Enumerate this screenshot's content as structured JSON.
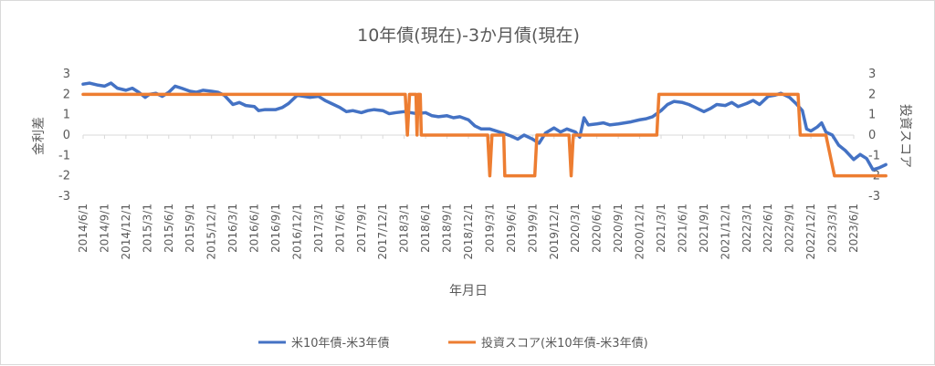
{
  "chart_data": {
    "type": "line",
    "title": "10年債(現在)-3か月債(現在)",
    "xlabel": "年月日",
    "ylabel_left": "金利差",
    "ylabel_right": "投資スコア",
    "y_left_range": [
      -3,
      3
    ],
    "y_right_range": [
      -3,
      3
    ],
    "y_ticks": [
      "3",
      "2",
      "1",
      "0",
      "-1",
      "-2",
      "-3"
    ],
    "x_ticks": [
      "2014/6/1",
      "2014/9/1",
      "2014/12/1",
      "2015/3/1",
      "2015/6/1",
      "2015/9/1",
      "2015/12/1",
      "2016/3/1",
      "2016/6/1",
      "2016/9/1",
      "2016/12/1",
      "2017/3/1",
      "2017/6/1",
      "2017/9/1",
      "2017/12/1",
      "2018/3/1",
      "2018/6/1",
      "2018/9/1",
      "2018/12/1",
      "2019/3/1",
      "2019/6/1",
      "2019/9/1",
      "2019/12/1",
      "2020/3/1",
      "2020/6/1",
      "2020/9/1",
      "2020/12/1",
      "2021/3/1",
      "2021/6/1",
      "2021/9/1",
      "2021/12/1",
      "2022/3/1",
      "2022/6/1",
      "2022/9/1",
      "2022/12/1",
      "2023/3/1",
      "2023/6/1"
    ],
    "legend_position": "bottom",
    "grid": false,
    "series": [
      {
        "name": "米10年債-米3年債",
        "color": "#4472c4",
        "axis": "left",
        "points": [
          [
            0,
            2.5
          ],
          [
            0.3,
            2.55
          ],
          [
            0.7,
            2.45
          ],
          [
            1.0,
            2.4
          ],
          [
            1.3,
            2.55
          ],
          [
            1.6,
            2.3
          ],
          [
            2.0,
            2.2
          ],
          [
            2.3,
            2.3
          ],
          [
            2.6,
            2.1
          ],
          [
            2.9,
            1.85
          ],
          [
            3.1,
            2.0
          ],
          [
            3.4,
            2.05
          ],
          [
            3.7,
            1.9
          ],
          [
            4.0,
            2.1
          ],
          [
            4.3,
            2.4
          ],
          [
            4.6,
            2.3
          ],
          [
            5.0,
            2.15
          ],
          [
            5.3,
            2.1
          ],
          [
            5.6,
            2.2
          ],
          [
            6.0,
            2.15
          ],
          [
            6.3,
            2.1
          ],
          [
            6.6,
            1.95
          ],
          [
            7.0,
            1.5
          ],
          [
            7.3,
            1.6
          ],
          [
            7.6,
            1.45
          ],
          [
            8.0,
            1.4
          ],
          [
            8.2,
            1.2
          ],
          [
            8.5,
            1.25
          ],
          [
            9.0,
            1.25
          ],
          [
            9.3,
            1.35
          ],
          [
            9.6,
            1.55
          ],
          [
            10.0,
            1.95
          ],
          [
            10.3,
            1.9
          ],
          [
            10.6,
            1.85
          ],
          [
            11.0,
            1.9
          ],
          [
            11.3,
            1.7
          ],
          [
            11.6,
            1.55
          ],
          [
            12.0,
            1.35
          ],
          [
            12.3,
            1.15
          ],
          [
            12.6,
            1.2
          ],
          [
            13.0,
            1.1
          ],
          [
            13.3,
            1.2
          ],
          [
            13.6,
            1.25
          ],
          [
            14.0,
            1.2
          ],
          [
            14.3,
            1.05
          ],
          [
            14.6,
            1.1
          ],
          [
            15.0,
            1.15
          ],
          [
            15.3,
            1.1
          ],
          [
            15.6,
            1.05
          ],
          [
            16.0,
            1.1
          ],
          [
            16.3,
            0.95
          ],
          [
            16.6,
            0.9
          ],
          [
            17.0,
            0.95
          ],
          [
            17.3,
            0.85
          ],
          [
            17.6,
            0.9
          ],
          [
            18.0,
            0.75
          ],
          [
            18.3,
            0.45
          ],
          [
            18.6,
            0.3
          ],
          [
            19.0,
            0.3
          ],
          [
            19.3,
            0.2
          ],
          [
            19.6,
            0.1
          ],
          [
            20.0,
            -0.05
          ],
          [
            20.3,
            -0.2
          ],
          [
            20.6,
            0.0
          ],
          [
            21.0,
            -0.2
          ],
          [
            21.3,
            -0.4
          ],
          [
            21.6,
            0.1
          ],
          [
            22.0,
            0.35
          ],
          [
            22.3,
            0.15
          ],
          [
            22.6,
            0.3
          ],
          [
            23.0,
            0.15
          ],
          [
            23.2,
            -0.1
          ],
          [
            23.4,
            0.85
          ],
          [
            23.6,
            0.5
          ],
          [
            24.0,
            0.55
          ],
          [
            24.3,
            0.6
          ],
          [
            24.6,
            0.5
          ],
          [
            25.0,
            0.55
          ],
          [
            25.3,
            0.6
          ],
          [
            25.6,
            0.65
          ],
          [
            26.0,
            0.75
          ],
          [
            26.3,
            0.8
          ],
          [
            26.6,
            0.9
          ],
          [
            27.0,
            1.2
          ],
          [
            27.3,
            1.5
          ],
          [
            27.6,
            1.65
          ],
          [
            28.0,
            1.6
          ],
          [
            28.3,
            1.5
          ],
          [
            28.6,
            1.35
          ],
          [
            29.0,
            1.15
          ],
          [
            29.3,
            1.3
          ],
          [
            29.6,
            1.5
          ],
          [
            30.0,
            1.45
          ],
          [
            30.3,
            1.6
          ],
          [
            30.6,
            1.4
          ],
          [
            31.0,
            1.55
          ],
          [
            31.3,
            1.7
          ],
          [
            31.6,
            1.5
          ],
          [
            32.0,
            1.9
          ],
          [
            32.3,
            1.95
          ],
          [
            32.6,
            2.05
          ],
          [
            33.0,
            1.85
          ],
          [
            33.3,
            1.55
          ],
          [
            33.6,
            1.2
          ],
          [
            33.8,
            0.3
          ],
          [
            34.0,
            0.2
          ],
          [
            34.3,
            0.4
          ],
          [
            34.5,
            0.6
          ],
          [
            34.7,
            0.15
          ],
          [
            35.0,
            0.0
          ],
          [
            35.3,
            -0.5
          ],
          [
            35.6,
            -0.75
          ],
          [
            36.0,
            -1.2
          ],
          [
            36.3,
            -0.95
          ],
          [
            36.6,
            -1.15
          ],
          [
            36.9,
            -1.7
          ],
          [
            37.2,
            -1.6
          ],
          [
            37.5,
            -1.45
          ]
        ]
      },
      {
        "name": "投資スコア(米10年債-米3年債)",
        "color": "#ed7d31",
        "axis": "right",
        "points": [
          [
            0,
            2
          ],
          [
            15.05,
            2
          ],
          [
            15.15,
            0
          ],
          [
            15.25,
            2
          ],
          [
            15.55,
            2
          ],
          [
            15.6,
            0
          ],
          [
            15.65,
            2
          ],
          [
            15.75,
            2
          ],
          [
            15.8,
            0
          ],
          [
            18.9,
            0
          ],
          [
            19.0,
            -2
          ],
          [
            19.1,
            0
          ],
          [
            19.65,
            0
          ],
          [
            19.7,
            -2
          ],
          [
            21.1,
            -2
          ],
          [
            21.2,
            0
          ],
          [
            22.7,
            0
          ],
          [
            22.8,
            -2
          ],
          [
            22.9,
            0
          ],
          [
            26.8,
            0
          ],
          [
            26.9,
            2
          ],
          [
            33.4,
            2
          ],
          [
            33.5,
            0
          ],
          [
            34.7,
            0
          ],
          [
            35.1,
            -2
          ],
          [
            37.5,
            -2
          ]
        ]
      }
    ]
  }
}
